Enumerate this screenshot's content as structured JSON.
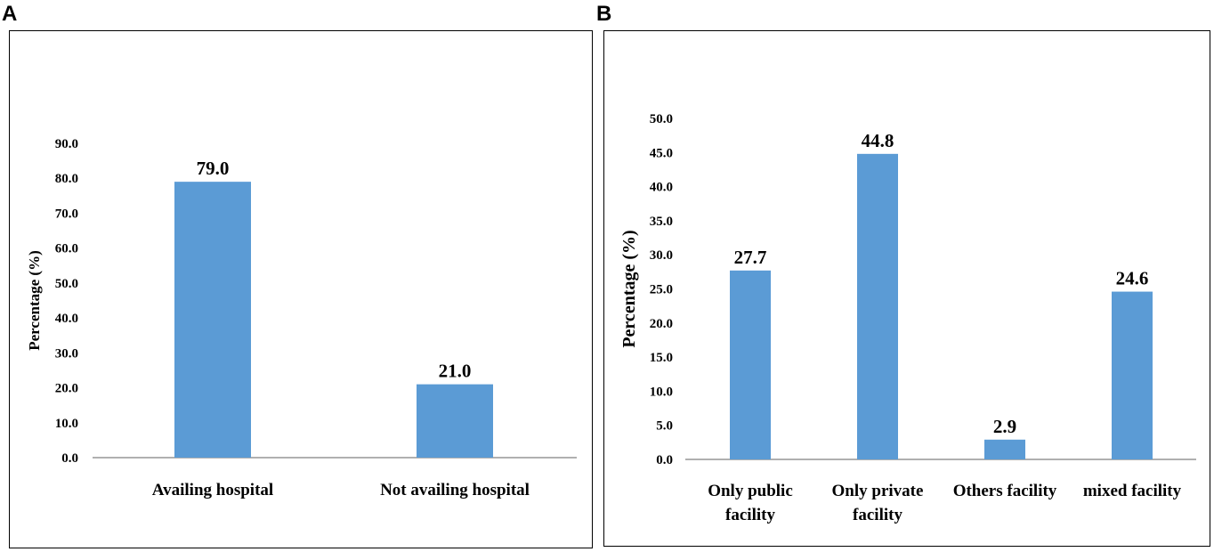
{
  "panels": {
    "a": {
      "letter": "A"
    },
    "b": {
      "letter": "B"
    }
  },
  "colors": {
    "bar": "#5b9bd5",
    "axis": "#808080",
    "text": "#000000"
  },
  "chart_data": [
    {
      "type": "bar",
      "title": "",
      "xlabel": "",
      "ylabel": "Percentage (%)",
      "ylim": [
        0,
        90
      ],
      "ytick_step": 10,
      "categories": [
        [
          "Availing hospital"
        ],
        [
          "Not availing hospital"
        ]
      ],
      "values": [
        79.0,
        21.0
      ],
      "data_labels": [
        "79.0",
        "21.0"
      ]
    },
    {
      "type": "bar",
      "title": "",
      "xlabel": "",
      "ylabel": "Percentage (%)",
      "ylim": [
        0,
        50
      ],
      "ytick_step": 5,
      "categories": [
        [
          "Only public",
          "facility"
        ],
        [
          "Only private",
          "facility"
        ],
        [
          "Others facility"
        ],
        [
          "mixed facility"
        ]
      ],
      "values": [
        27.7,
        44.8,
        2.9,
        24.6
      ],
      "data_labels": [
        "27.7",
        "44.8",
        "2.9",
        "24.6"
      ]
    }
  ]
}
